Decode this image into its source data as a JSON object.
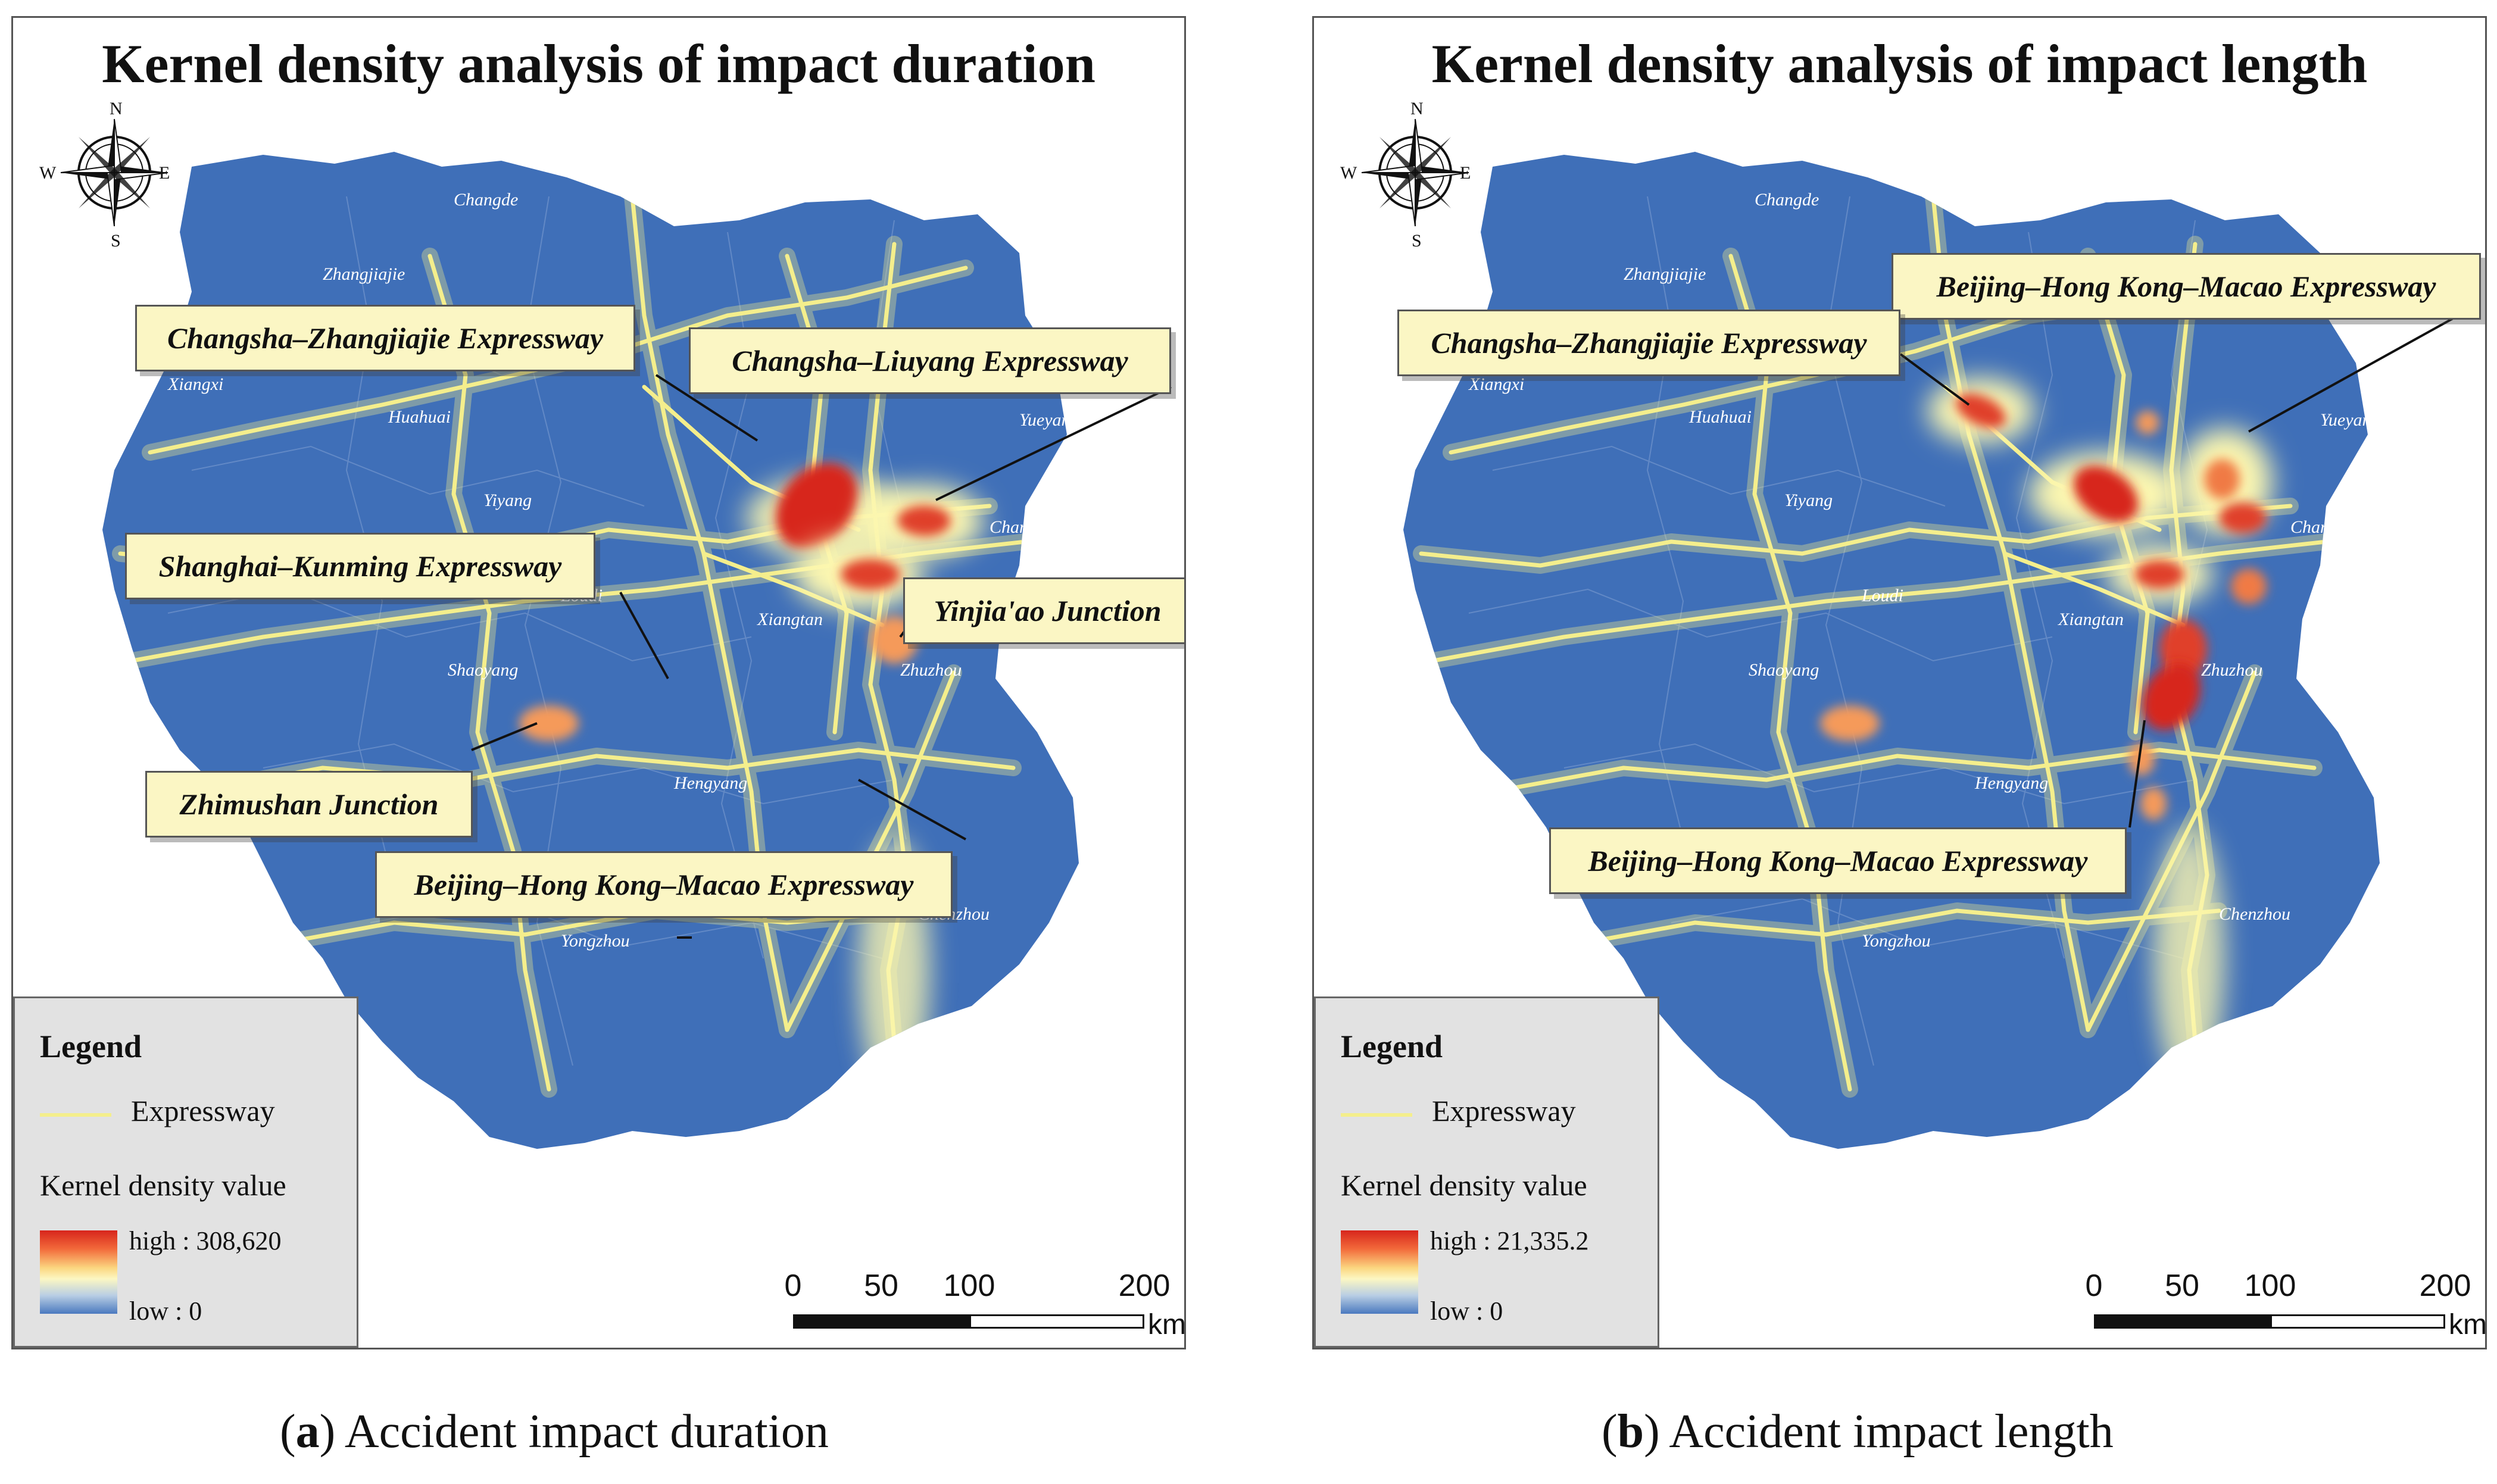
{
  "panels": [
    {
      "title": "Kernel density analysis of impact duration",
      "callouts": [
        "Changsha–Zhangjiajie Expressway",
        "Changsha–Liuyang Expressway",
        "Shanghai–Kunming Expressway",
        "Yinjia'ao Junction",
        "Zhimushan Junction",
        "Beijing–Hong Kong–Macao Expressway"
      ],
      "legend": {
        "title": "Legend",
        "expressway": "Expressway",
        "kernel_label": "Kernel density value",
        "high": "high : 308,620",
        "low": "low : 0"
      }
    },
    {
      "title": "Kernel density analysis of impact length",
      "callouts": [
        "Beijing–Hong Kong–Macao Expressway",
        "Changsha–Zhangjiajie Expressway",
        "Beijing–Hong Kong–Macao Expressway"
      ],
      "legend": {
        "title": "Legend",
        "expressway": "Expressway",
        "kernel_label": "Kernel density value",
        "high": "high : 21,335.2",
        "low": "low : 0"
      }
    }
  ],
  "compass": {
    "n": "N",
    "s": "S",
    "e": "E",
    "w": "W"
  },
  "cities": [
    "Changde",
    "Zhangjiajie",
    "Xiangxi",
    "Huahuai",
    "Yiyang",
    "Yueyang",
    "Changsha",
    "Loudi",
    "Xiangtan",
    "Shaoyang",
    "Zhuzhou",
    "Hengyang",
    "Chenzhou",
    "Yongzhou"
  ],
  "scale": {
    "labels": [
      "0",
      "50",
      "100",
      "200"
    ],
    "unit": "km"
  },
  "captions": [
    {
      "letter": "a",
      "text": ") Accident impact duration"
    },
    {
      "letter": "b",
      "text": ") Accident impact length"
    }
  ],
  "colors": {
    "province": "#3f6fb8",
    "expressway": "#f4ee8c",
    "hot": "#d7251c",
    "legend_bg": "#e2e2e2",
    "callout_bg": "#fbf6c4"
  }
}
